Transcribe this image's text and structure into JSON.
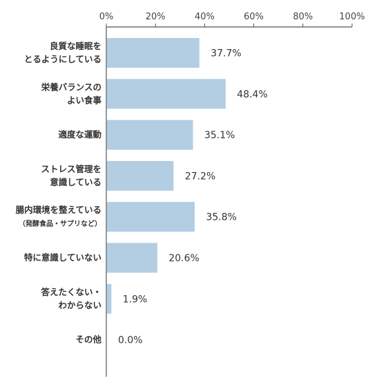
{
  "chart_data": {
    "type": "bar",
    "orientation": "horizontal",
    "title": "",
    "xlabel": "",
    "ylabel": "",
    "xlim": [
      0,
      100
    ],
    "x_ticks": [
      "0%",
      "20%",
      "40%",
      "60%",
      "80%",
      "100%"
    ],
    "x_axis_position": "top",
    "grid": false,
    "categories": [
      {
        "lines": [
          "良質な睡眠を",
          "とるようにしている"
        ]
      },
      {
        "lines": [
          "栄養バランスの",
          "よい食事"
        ]
      },
      {
        "lines": [
          "適度な運動"
        ]
      },
      {
        "lines": [
          "ストレス管理を",
          "意識している"
        ]
      },
      {
        "lines": [
          "腸内環境を整えている"
        ],
        "sub": "（発酵食品・サプリなど）"
      },
      {
        "lines": [
          "特に意識していない"
        ]
      },
      {
        "lines": [
          "答えたくない・",
          "わからない"
        ]
      },
      {
        "lines": [
          "その他"
        ]
      }
    ],
    "values": [
      37.7,
      48.4,
      35.1,
      27.2,
      35.8,
      20.6,
      1.9,
      0.0
    ],
    "value_labels": [
      "37.7%",
      "48.4%",
      "35.1%",
      "27.2%",
      "35.8%",
      "20.6%",
      "1.9%",
      "0.0%"
    ],
    "colors": {
      "bar": "#b3cde2",
      "axis": "#555555",
      "tick_line": "#555555"
    }
  }
}
